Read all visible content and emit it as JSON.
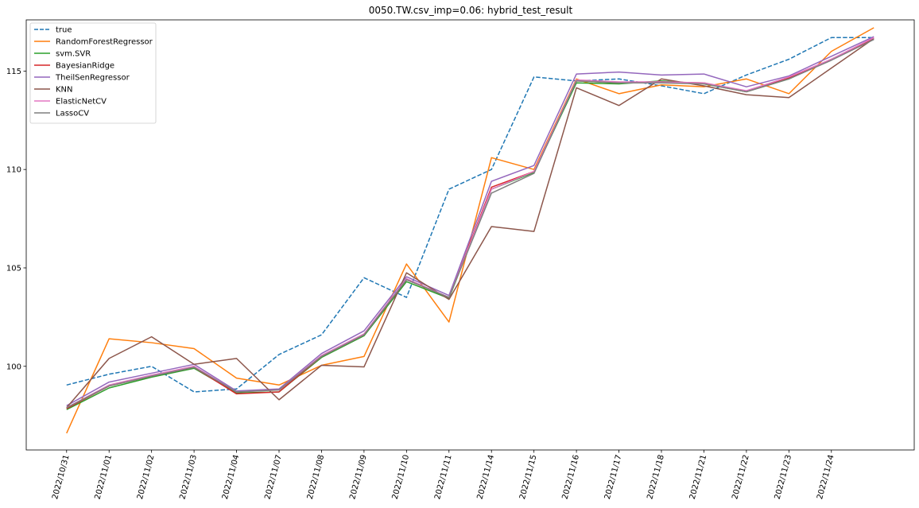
{
  "chart_data": {
    "type": "line",
    "title": "0050.TW.csv_imp=0.06: hybrid_test_result",
    "xlabel": "",
    "ylabel": "",
    "x_tick_labels": [
      "2022/10/31",
      "2022/11/01",
      "2022/11/02",
      "2022/11/03",
      "2022/11/04",
      "2022/11/07",
      "2022/11/08",
      "2022/11/09",
      "2022/11/10",
      "2022/11/11",
      "2022/11/14",
      "2022/11/15",
      "2022/11/16",
      "2022/11/17",
      "2022/11/18",
      "2022/11/21",
      "2022/11/22",
      "2022/11/23",
      "2022/11/24"
    ],
    "x_range": [
      -0.95,
      19.95
    ],
    "y_ticks": [
      100,
      105,
      110,
      115
    ],
    "ylim": [
      95.75,
      117.6
    ],
    "grid": false,
    "legend_position": "top-left",
    "series": [
      {
        "name": "true",
        "color": "#1f77b4",
        "dashed": true,
        "values": [
          99.05,
          99.6,
          100.0,
          98.7,
          98.85,
          100.6,
          101.6,
          104.5,
          103.5,
          109.0,
          110.0,
          114.7,
          114.5,
          114.6,
          114.25,
          113.85,
          114.8,
          115.6,
          116.7,
          116.7
        ]
      },
      {
        "name": "RandomForestRegressor",
        "color": "#ff7f0e",
        "dashed": false,
        "values": [
          96.6,
          101.4,
          101.2,
          100.9,
          99.4,
          99.05,
          100.05,
          100.5,
          105.2,
          102.25,
          110.6,
          110.0,
          114.6,
          113.85,
          114.3,
          114.2,
          114.6,
          113.85,
          116.0,
          117.2
        ]
      },
      {
        "name": "svm.SVR",
        "color": "#2ca02c",
        "dashed": false,
        "values": [
          97.8,
          98.9,
          99.45,
          99.9,
          98.65,
          98.7,
          100.45,
          101.55,
          104.3,
          103.45,
          109.0,
          109.85,
          114.4,
          114.35,
          114.5,
          114.35,
          113.95,
          114.6,
          115.6,
          116.65
        ]
      },
      {
        "name": "BayesianRidge",
        "color": "#d62728",
        "dashed": false,
        "values": [
          97.85,
          99.0,
          99.5,
          99.95,
          98.6,
          98.7,
          100.5,
          101.6,
          104.4,
          103.5,
          109.1,
          109.9,
          114.5,
          114.4,
          114.45,
          114.4,
          113.95,
          114.65,
          115.6,
          116.65
        ]
      },
      {
        "name": "TheilSenRegressor",
        "color": "#9467bd",
        "dashed": false,
        "values": [
          98.0,
          99.2,
          99.65,
          100.1,
          98.75,
          98.85,
          100.65,
          101.8,
          104.55,
          103.6,
          109.4,
          110.2,
          114.85,
          114.95,
          114.8,
          114.85,
          114.2,
          114.75,
          115.75,
          116.75
        ]
      },
      {
        "name": "KNN",
        "color": "#8c564b",
        "dashed": false,
        "values": [
          97.9,
          100.4,
          101.5,
          100.1,
          100.4,
          98.3,
          100.05,
          99.97,
          104.75,
          103.4,
          107.1,
          106.85,
          114.15,
          113.25,
          114.6,
          114.25,
          113.8,
          113.65,
          115.15,
          116.65
        ]
      },
      {
        "name": "ElasticNetCV",
        "color": "#e377c2",
        "dashed": false,
        "values": [
          97.9,
          99.05,
          99.55,
          100.0,
          98.7,
          98.8,
          100.55,
          101.65,
          104.45,
          103.5,
          109.0,
          109.9,
          114.55,
          114.45,
          114.45,
          114.4,
          114.0,
          114.7,
          115.6,
          116.7
        ]
      },
      {
        "name": "LassoCV",
        "color": "#7f7f7f",
        "dashed": false,
        "values": [
          97.9,
          99.0,
          99.5,
          99.95,
          98.7,
          98.8,
          100.5,
          101.6,
          104.4,
          103.5,
          108.8,
          109.8,
          114.5,
          114.4,
          114.4,
          114.35,
          113.95,
          114.6,
          115.55,
          116.6
        ]
      }
    ]
  }
}
